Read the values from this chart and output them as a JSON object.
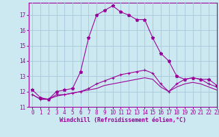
{
  "xlabel": "Windchill (Refroidissement éolien,°C)",
  "background_color": "#cce8f0",
  "grid_color": "#aaccdd",
  "line_color": "#990099",
  "x_hours": [
    0,
    1,
    2,
    3,
    4,
    5,
    6,
    7,
    8,
    9,
    10,
    11,
    12,
    13,
    14,
    15,
    16,
    17,
    18,
    19,
    20,
    21,
    22,
    23
  ],
  "curve1": [
    12.1,
    11.6,
    11.5,
    12.0,
    12.1,
    12.2,
    13.3,
    15.5,
    17.0,
    17.3,
    17.6,
    17.2,
    17.0,
    16.7,
    16.7,
    15.5,
    14.5,
    14.0,
    13.0,
    12.8,
    12.9,
    12.8,
    12.8,
    12.4
  ],
  "curve2": [
    11.8,
    11.5,
    11.5,
    11.8,
    11.8,
    11.9,
    12.0,
    12.2,
    12.5,
    12.7,
    12.9,
    13.1,
    13.2,
    13.3,
    13.4,
    13.2,
    12.5,
    12.0,
    12.5,
    12.8,
    12.9,
    12.8,
    12.5,
    12.3
  ],
  "curve3": [
    11.8,
    11.5,
    11.5,
    11.7,
    11.8,
    11.9,
    12.0,
    12.1,
    12.2,
    12.4,
    12.5,
    12.6,
    12.7,
    12.8,
    12.9,
    12.8,
    12.3,
    12.0,
    12.3,
    12.5,
    12.6,
    12.5,
    12.3,
    12.1
  ],
  "ylim": [
    11,
    17.8
  ],
  "xlim": [
    -0.5,
    23
  ],
  "yticks": [
    11,
    12,
    13,
    14,
    15,
    16,
    17
  ],
  "xticks": [
    0,
    1,
    2,
    3,
    4,
    5,
    6,
    7,
    8,
    9,
    10,
    11,
    12,
    13,
    14,
    15,
    16,
    17,
    18,
    19,
    20,
    21,
    22,
    23
  ],
  "tick_fontsize": 5.5,
  "xlabel_fontsize": 6.0
}
